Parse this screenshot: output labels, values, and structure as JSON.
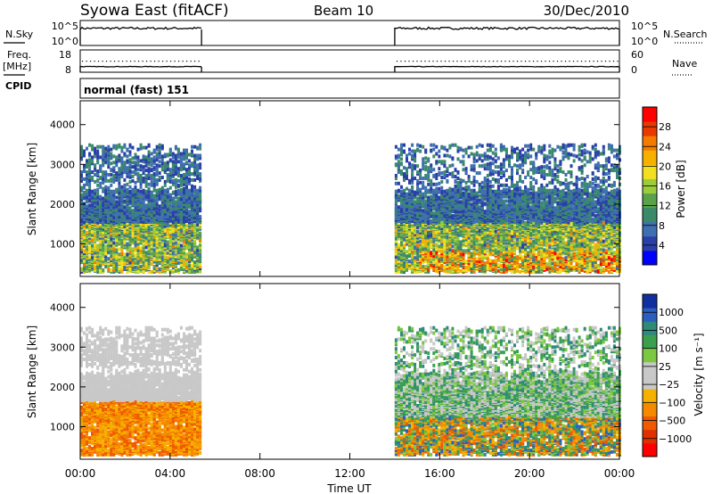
{
  "header": {
    "station": "Syowa East (fitACF)",
    "beam": "Beam 10",
    "date": "30/Dec/2010"
  },
  "left_labels": {
    "nsky": "N.Sky",
    "freq_line1": "Freq.",
    "freq_line2": "[MHz]",
    "cpid": "CPID"
  },
  "right_labels": {
    "nsearch": "N.Search",
    "nave": "Nave"
  },
  "cpid_value": "normal (fast) 151",
  "chart_data": [
    {
      "type": "line",
      "name": "noise-panel",
      "left_axis": {
        "ticks": [
          "10^5",
          "10^0"
        ]
      },
      "right_axis": {
        "ticks": [
          "10^5",
          "10^0"
        ]
      },
      "data_intervals_ut_hours": [
        [
          0.0,
          5.4
        ],
        [
          14.0,
          24.0
        ]
      ]
    },
    {
      "type": "line",
      "name": "frequency-panel",
      "left_axis": {
        "ticks": [
          "18",
          "8"
        ]
      },
      "right_axis": {
        "ticks": [
          "60",
          "0"
        ]
      },
      "data_intervals_ut_hours": [
        [
          0.0,
          5.4
        ],
        [
          14.0,
          24.0
        ]
      ]
    },
    {
      "type": "heatmap",
      "name": "power",
      "ylabel": "Slant Range [km]",
      "y_ticks": [
        1000,
        2000,
        3000,
        4000
      ],
      "ylim": [
        180,
        4600
      ],
      "xlim": [
        0,
        24
      ],
      "colorbar": {
        "label": "Power [dB]",
        "ticks": [
          "4",
          "8",
          "12",
          "16",
          "20",
          "24",
          "28"
        ],
        "colors": [
          "#0000ff",
          "#2a3fa8",
          "#3e6fb0",
          "#3a8a6a",
          "#5aa24a",
          "#9ccc3c",
          "#f2e020",
          "#f5b000",
          "#f57b00",
          "#e83a00",
          "#ff0000"
        ]
      },
      "data_intervals_ut_hours": [
        [
          0.0,
          5.4
        ],
        [
          14.0,
          24.0
        ]
      ]
    },
    {
      "type": "heatmap",
      "name": "velocity",
      "ylabel": "Slant Range [km]",
      "y_ticks": [
        1000,
        2000,
        3000,
        4000
      ],
      "ylim": [
        180,
        4600
      ],
      "xlim": [
        0,
        24
      ],
      "xlabel": "Time UT",
      "x_ticks": [
        "00:00",
        "04:00",
        "08:00",
        "12:00",
        "16:00",
        "20:00",
        "00:00"
      ],
      "colorbar": {
        "label": "Velocity [m s⁻¹]",
        "ticks": [
          "1000",
          "500",
          "100",
          "25",
          "−25",
          "−100",
          "−500",
          "−1000"
        ],
        "colors": [
          "#1030a0",
          "#2a5fc0",
          "#2f8a7a",
          "#3aa050",
          "#7cc840",
          "#c8c8c8",
          "#c8c8c8",
          "#f5b000",
          "#f58a00",
          "#f05a00",
          "#e03000",
          "#ff0000"
        ]
      },
      "data_intervals_ut_hours": [
        [
          0.0,
          5.4
        ],
        [
          14.0,
          24.0
        ]
      ]
    }
  ]
}
